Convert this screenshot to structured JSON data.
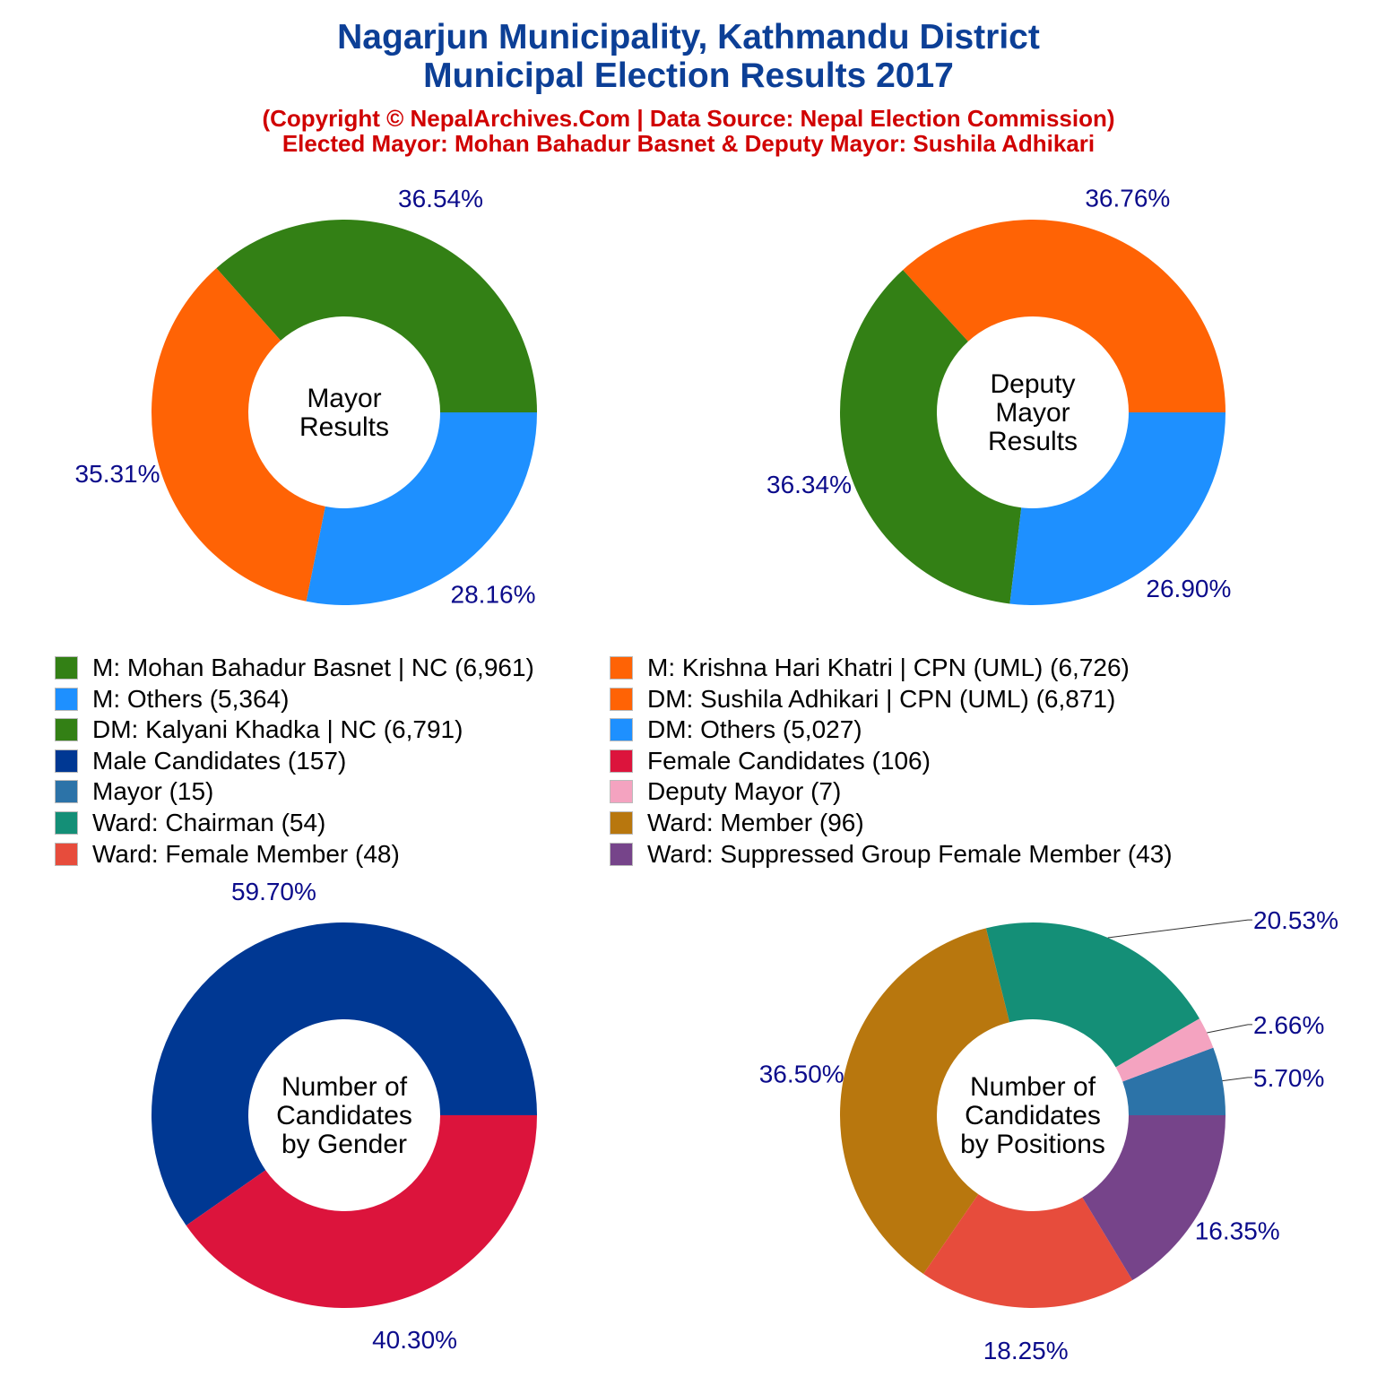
{
  "header": {
    "title_line1": "Nagarjun Municipality, Kathmandu District",
    "title_line2": "Municipal Election Results 2017",
    "subtitle_line1": "(Copyright © NepalArchives.Com | Data Source: Nepal Election Commission)",
    "subtitle_line2": "Elected Mayor: Mohan Bahadur Basnet & Deputy Mayor: Sushila Adhikari"
  },
  "legend": [
    {
      "label": "M: Mohan Bahadur Basnet | NC (6,961)",
      "color": "#338015"
    },
    {
      "label": "M: Krishna Hari Khatri | CPN (UML) (6,726)",
      "color": "#ff6305"
    },
    {
      "label": "M: Others (5,364)",
      "color": "#1e90ff"
    },
    {
      "label": "DM: Sushila Adhikari | CPN (UML) (6,871)",
      "color": "#ff6305"
    },
    {
      "label": "DM: Kalyani Khadka | NC (6,791)",
      "color": "#338015"
    },
    {
      "label": "DM: Others (5,027)",
      "color": "#1e90ff"
    },
    {
      "label": "Male Candidates (157)",
      "color": "#003893"
    },
    {
      "label": "Female Candidates (106)",
      "color": "#dc143c"
    },
    {
      "label": "Mayor (15)",
      "color": "#2c73a8"
    },
    {
      "label": "Deputy Mayor (7)",
      "color": "#f4a3c0"
    },
    {
      "label": "Ward: Chairman (54)",
      "color": "#148f77"
    },
    {
      "label": "Ward: Member (96)",
      "color": "#b8770e"
    },
    {
      "label": "Ward: Female Member (48)",
      "color": "#e74c3c"
    },
    {
      "label": "Ward: Suppressed Group Female Member (43)",
      "color": "#76448a"
    }
  ],
  "chart_data": [
    {
      "type": "pie",
      "donut": true,
      "center_label": [
        "Mayor",
        "Results"
      ],
      "categories": [
        "M: Mohan Bahadur Basnet | NC",
        "M: Krishna Hari Khatri | CPN (UML)",
        "M: Others"
      ],
      "values": [
        6961,
        6726,
        5364
      ],
      "percent_labels": [
        "36.54%",
        "35.31%",
        "28.16%"
      ],
      "colors": [
        "#338015",
        "#ff6305",
        "#1e90ff"
      ]
    },
    {
      "type": "pie",
      "donut": true,
      "center_label": [
        "Deputy",
        "Mayor",
        "Results"
      ],
      "categories": [
        "DM: Sushila Adhikari | CPN (UML)",
        "DM: Kalyani Khadka | NC",
        "DM: Others"
      ],
      "values": [
        6871,
        6791,
        5027
      ],
      "percent_labels": [
        "36.76%",
        "36.34%",
        "26.90%"
      ],
      "colors": [
        "#ff6305",
        "#338015",
        "#1e90ff"
      ]
    },
    {
      "type": "pie",
      "donut": true,
      "center_label": [
        "Number of",
        "Candidates",
        "by Gender"
      ],
      "categories": [
        "Male Candidates",
        "Female Candidates"
      ],
      "values": [
        157,
        106
      ],
      "percent_labels": [
        "59.70%",
        "40.30%"
      ],
      "colors": [
        "#003893",
        "#dc143c"
      ]
    },
    {
      "type": "pie",
      "donut": true,
      "center_label": [
        "Number of",
        "Candidates",
        "by Positions"
      ],
      "categories": [
        "Mayor",
        "Deputy Mayor",
        "Ward: Chairman",
        "Ward: Member",
        "Ward: Female Member",
        "Ward: Suppressed Group Female Member"
      ],
      "values": [
        15,
        7,
        54,
        96,
        48,
        43
      ],
      "percent_labels": [
        "5.70%",
        "2.66%",
        "20.53%",
        "36.50%",
        "18.25%",
        "16.35%"
      ],
      "colors": [
        "#2c73a8",
        "#f4a3c0",
        "#148f77",
        "#b8770e",
        "#e74c3c",
        "#76448a"
      ]
    }
  ]
}
